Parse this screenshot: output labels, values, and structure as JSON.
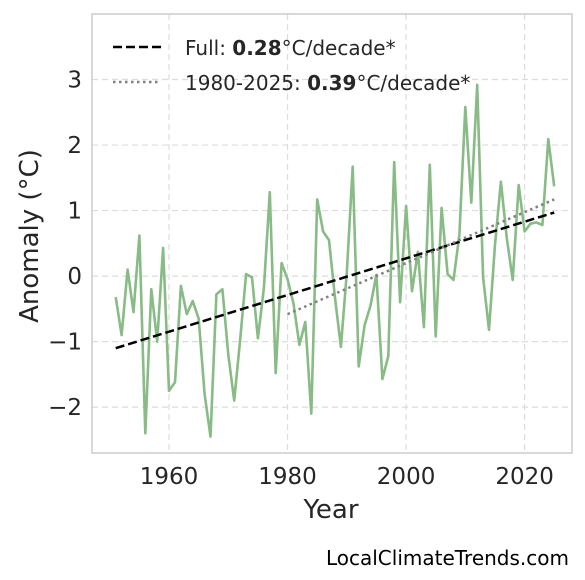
{
  "chart_data": {
    "type": "line",
    "xlabel": "Year",
    "ylabel": "Anomaly (°C)",
    "xlim": [
      1947,
      2028
    ],
    "ylim": [
      -2.7,
      4.0
    ],
    "xticks": [
      1960,
      1980,
      2000,
      2020
    ],
    "yticks": [
      -2,
      -1,
      0,
      1,
      2,
      3
    ],
    "ytick_labels": [
      "−2",
      "−1",
      "0",
      "1",
      "2",
      "3"
    ],
    "grid": true,
    "legend_placement": "top-left",
    "colors": {
      "series": "#88bb85",
      "full_trend": "#000000",
      "recent_trend": "#808080"
    },
    "series": [
      {
        "x": [
          1951,
          1952,
          1953,
          1954,
          1955,
          1956,
          1957,
          1958,
          1959,
          1960,
          1961,
          1962,
          1963,
          1964,
          1965,
          1966,
          1967,
          1968,
          1969,
          1970,
          1971,
          1972,
          1973,
          1974,
          1975,
          1976,
          1977,
          1978,
          1979,
          1980,
          1981,
          1982,
          1983,
          1984,
          1985,
          1986,
          1987,
          1988,
          1989,
          1990,
          1991,
          1992,
          1993,
          1994,
          1995,
          1996,
          1997,
          1998,
          1999,
          2000,
          2001,
          2002,
          2003,
          2004,
          2005,
          2006,
          2007,
          2008,
          2009,
          2010,
          2011,
          2012,
          2013,
          2014,
          2015,
          2016,
          2017,
          2018,
          2019,
          2020,
          2021,
          2022,
          2023,
          2024,
          2025
        ],
        "values": [
          -0.32,
          -0.9,
          0.1,
          -0.55,
          0.62,
          -2.4,
          -0.2,
          -1.0,
          0.43,
          -1.75,
          -1.62,
          -0.15,
          -0.58,
          -0.38,
          -0.65,
          -1.8,
          -2.45,
          -0.28,
          -0.2,
          -1.2,
          -1.9,
          -0.98,
          0.03,
          -0.02,
          -0.95,
          -0.18,
          1.28,
          -1.48,
          0.2,
          -0.05,
          -0.42,
          -1.05,
          -0.7,
          -2.1,
          1.17,
          0.68,
          0.55,
          -0.33,
          -1.08,
          0.05,
          1.67,
          -1.38,
          -0.75,
          -0.45,
          0.02,
          -1.57,
          -1.22,
          1.74,
          -0.4,
          1.07,
          -0.23,
          0.37,
          -0.78,
          1.7,
          -0.92,
          1.04,
          0.03,
          -0.06,
          0.63,
          2.58,
          1.12,
          2.92,
          -0.02,
          -0.82,
          0.48,
          1.44,
          0.58,
          -0.06,
          1.39,
          0.68,
          0.8,
          0.82,
          0.78,
          2.09,
          1.37
        ]
      }
    ],
    "trends": [
      {
        "name": "Full",
        "style": "dashed",
        "x": [
          1951,
          2025
        ],
        "y": [
          -1.1,
          0.97
        ]
      },
      {
        "name": "1980-2025",
        "style": "dotted",
        "x": [
          1980,
          2025
        ],
        "y": [
          -0.58,
          1.17
        ]
      }
    ],
    "legend": [
      {
        "prefix": "Full: ",
        "value": "0.28",
        "suffix": "°C/decade*",
        "style": "dashed"
      },
      {
        "prefix": "1980-2025: ",
        "value": "0.39",
        "suffix": "°C/decade*",
        "style": "dotted"
      }
    ]
  },
  "attribution": "LocalClimateTrends.com"
}
